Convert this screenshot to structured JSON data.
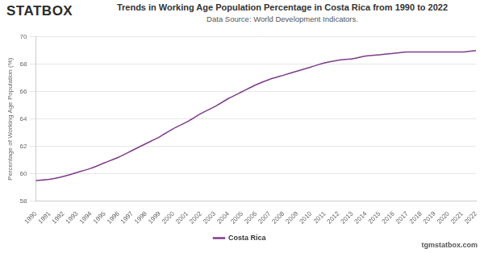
{
  "chart_data": {
    "type": "line",
    "brand": "STATBOX",
    "title": "Trends in Working Age Population Percentage in Costa Rica from 1990 to 2022",
    "subtitle": "Data Source: World Development Indicators.",
    "footer": "tgmstatbox.com",
    "y_label": "Percentage of Working Age Population (%)",
    "categories": [
      "1990",
      "1991",
      "1992",
      "1993",
      "1994",
      "1995",
      "1996",
      "1997",
      "1998",
      "1999",
      "2000",
      "2001",
      "2002",
      "2003",
      "2004",
      "2005",
      "2006",
      "2007",
      "2008",
      "2009",
      "2010",
      "2011",
      "2012",
      "2013",
      "2014",
      "2015",
      "2016",
      "2017",
      "2018",
      "2019",
      "2020",
      "2021",
      "2022"
    ],
    "series": [
      {
        "name": "Costa Rica",
        "color": "#7d3c8a",
        "values": [
          59.5,
          59.6,
          59.8,
          60.1,
          60.4,
          60.8,
          61.2,
          61.7,
          62.2,
          62.7,
          63.3,
          63.8,
          64.4,
          64.9,
          65.5,
          66.0,
          66.5,
          66.9,
          67.2,
          67.5,
          67.8,
          68.1,
          68.3,
          68.4,
          68.6,
          68.7,
          68.8,
          68.9,
          68.9,
          68.9,
          68.9,
          68.9,
          69.0
        ]
      }
    ],
    "ylim": [
      58,
      70
    ],
    "yticks": [
      58,
      60,
      62,
      64,
      66,
      68,
      70
    ],
    "grid": true,
    "legend": "bottom"
  }
}
